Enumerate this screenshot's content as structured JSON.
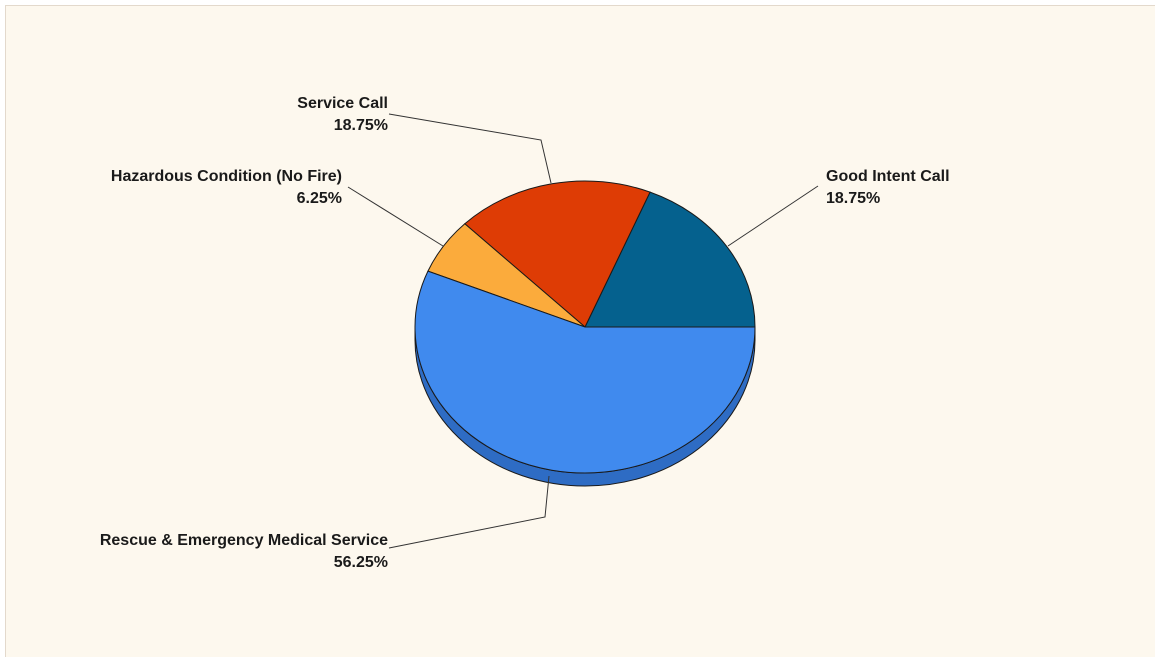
{
  "chart_data": {
    "type": "pie",
    "style": "3d-tilted",
    "legend": "none",
    "slices": [
      {
        "label": "Good Intent Call",
        "percent_label": "18.75%",
        "value": 18.75,
        "color": "#05618e",
        "side_color": "#034a6c"
      },
      {
        "label": "Service Call",
        "percent_label": "18.75%",
        "value": 18.75,
        "color": "#de3c05",
        "side_color": "#a82e04"
      },
      {
        "label": "Hazardous Condition (No Fire)",
        "percent_label": "6.25%",
        "value": 6.25,
        "color": "#fbab3c",
        "side_color": "#c8862b"
      },
      {
        "label": "Rescue & Emergency Medical Service",
        "percent_label": "56.25%",
        "value": 56.25,
        "color": "#408aee",
        "side_color": "#2e6cc4"
      }
    ]
  }
}
